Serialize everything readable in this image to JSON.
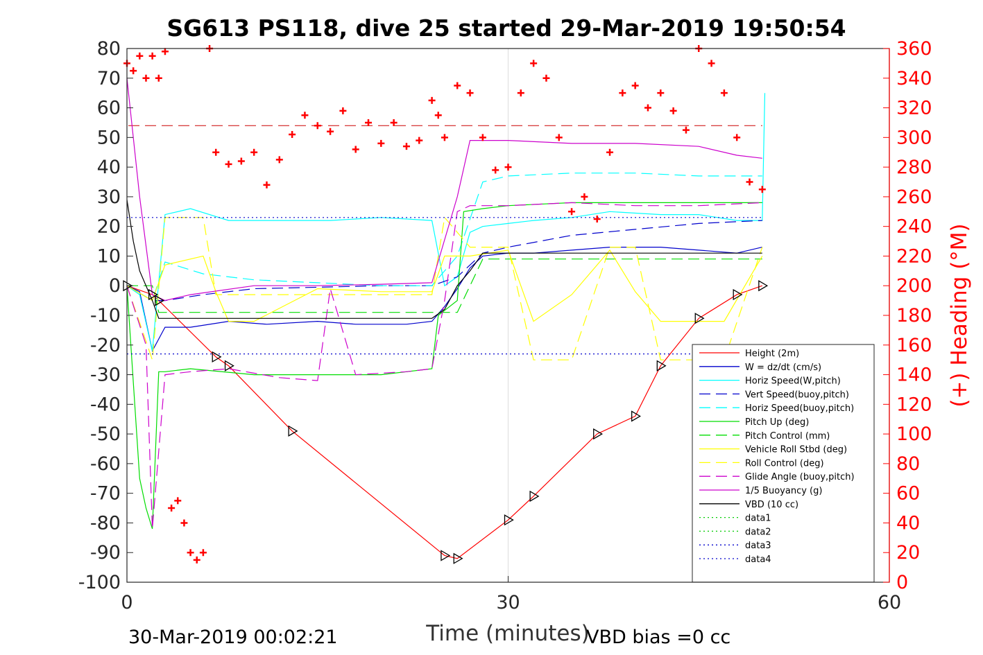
{
  "chart_data": {
    "type": "line",
    "title": "SG613 PS118, dive 25 started 29-Mar-2019 19:50:54",
    "xlabel": "Time (minutes)",
    "ylabel": "",
    "ylabel_right": "(+) Heading (°M)",
    "xlim": [
      0,
      60
    ],
    "ylim": [
      -100,
      80
    ],
    "ylim_right": [
      0,
      360
    ],
    "x_ticks": [
      "0",
      "30",
      "60"
    ],
    "y_ticks": [
      "80",
      "70",
      "60",
      "50",
      "40",
      "30",
      "20",
      "10",
      "0",
      "-10",
      "-20",
      "-30",
      "-40",
      "-50",
      "-60",
      "-70",
      "-80",
      "-90",
      "-100"
    ],
    "y_ticks_right": [
      "360",
      "340",
      "320",
      "300",
      "280",
      "260",
      "240",
      "220",
      "200",
      "180",
      "160",
      "140",
      "120",
      "100",
      "80",
      "60",
      "40",
      "20",
      "0"
    ],
    "grid": "x-only",
    "legend_position": "lower-right",
    "footer_left": "30-Mar-2019 00:02:21",
    "footer_right": "VBD bias =0 cc",
    "colors": {
      "red": "#ff0000",
      "blue": "#0000cc",
      "cyan": "#00ffff",
      "green": "#00dd00",
      "yellow": "#ffff00",
      "magenta": "#cc00cc",
      "black": "#000000"
    },
    "series": [
      {
        "name": "Height (2m)",
        "color": "#ff0000",
        "style": "solid",
        "x": [
          0,
          2,
          2.5,
          7,
          8,
          13,
          25,
          26,
          30,
          32,
          37,
          40,
          42,
          45,
          48,
          50
        ],
        "y": [
          0,
          -3,
          -5,
          -24,
          -27,
          -49,
          -91,
          -92,
          -79,
          -71,
          -50,
          -44,
          -27,
          -11,
          -3,
          0
        ]
      },
      {
        "name": "W = dz/dt (cm/s)",
        "color": "#0000cc",
        "style": "solid",
        "x": [
          0,
          1,
          2,
          3,
          5,
          8,
          11,
          15,
          18,
          22,
          24,
          25,
          26,
          27,
          28,
          30,
          32,
          35,
          38,
          42,
          45,
          48,
          50
        ],
        "y": [
          0,
          -2,
          -22,
          -14,
          -14,
          -12,
          -13,
          -12,
          -13,
          -13,
          -12,
          -7,
          -1,
          6,
          10,
          11,
          11,
          12,
          13,
          13,
          12,
          11,
          13
        ]
      },
      {
        "name": "Horiz Speed(W,pitch)",
        "color": "#00ffff",
        "style": "solid",
        "x": [
          0,
          1,
          2,
          3,
          5,
          8,
          12,
          16,
          20,
          24,
          25,
          26,
          27,
          28,
          30,
          32,
          35,
          38,
          42,
          45,
          48,
          50,
          50.2
        ],
        "y": [
          0,
          -3,
          -22,
          24,
          26,
          22,
          22,
          22,
          23,
          22,
          0,
          3,
          18,
          20,
          21,
          22,
          23,
          25,
          24,
          24,
          22,
          22,
          65
        ]
      },
      {
        "name": "Vert Speed(buoy,pitch)",
        "color": "#0000cc",
        "style": "dashed",
        "x": [
          0,
          2,
          3,
          6,
          10,
          15,
          20,
          24,
          26,
          28,
          30,
          35,
          40,
          45,
          50
        ],
        "y": [
          0,
          -5,
          -5,
          -3,
          -1,
          -0.5,
          0,
          0,
          3,
          11,
          13,
          17,
          19,
          21,
          22
        ]
      },
      {
        "name": "Horiz Speed(buoy,pitch)",
        "color": "#00ffff",
        "style": "dashed",
        "x": [
          0,
          2,
          3,
          6,
          10,
          15,
          20,
          24,
          26,
          28,
          30,
          35,
          40,
          45,
          50
        ],
        "y": [
          0,
          -5,
          8,
          4,
          2,
          1,
          0,
          0,
          10,
          35,
          37,
          38,
          38,
          37,
          37
        ]
      },
      {
        "name": "Pitch Up (deg)",
        "color": "#00dd00",
        "style": "solid",
        "x": [
          0,
          1,
          1.5,
          2,
          2.5,
          3,
          5,
          10,
          15,
          20,
          24,
          24.5,
          26,
          26.5,
          28,
          30,
          35,
          40,
          45,
          50
        ],
        "y": [
          0,
          -65,
          -75,
          -82,
          -29,
          -29,
          -28,
          -30,
          -30,
          -30,
          -28,
          -10,
          -5,
          25,
          26,
          27,
          28,
          28,
          28,
          28
        ]
      },
      {
        "name": "Pitch Control (mm)",
        "color": "#00dd00",
        "style": "dashed",
        "x": [
          0,
          2,
          2.5,
          24,
          26,
          28,
          50
        ],
        "y": [
          0,
          0,
          -9,
          -9,
          -9,
          9,
          9
        ]
      },
      {
        "name": "Vehicle Roll Stbd (deg)",
        "color": "#ffff00",
        "style": "solid",
        "x": [
          0,
          2,
          3,
          6,
          7,
          8,
          10,
          15,
          20,
          24,
          25,
          27,
          30,
          32,
          35,
          38,
          40,
          42,
          45,
          47,
          50
        ],
        "y": [
          0,
          -5,
          7,
          10,
          -2,
          -12,
          -12,
          -1,
          -2,
          -2,
          10,
          10,
          12,
          -12,
          -3,
          12,
          -2,
          -12,
          -12,
          -12,
          10
        ]
      },
      {
        "name": "Roll Control (deg)",
        "color": "#ffff00",
        "style": "dashed",
        "x": [
          0,
          2,
          3,
          6,
          7,
          8,
          10,
          15,
          20,
          24,
          25,
          27,
          30,
          32,
          35,
          38,
          40,
          42,
          45,
          47,
          50
        ],
        "y": [
          0,
          -25,
          23,
          23,
          -3,
          -3,
          -3,
          -3,
          -3,
          -3,
          23,
          13,
          13,
          -25,
          -25,
          13,
          13,
          -25,
          -25,
          -25,
          13
        ]
      },
      {
        "name": "Glide Angle (buoy,pitch)",
        "color": "#cc00cc",
        "style": "dashed",
        "x": [
          0,
          1.5,
          2,
          3,
          5,
          8,
          12,
          15,
          16,
          18,
          22,
          24,
          25,
          26,
          27,
          30,
          35,
          40,
          45,
          50
        ],
        "y": [
          0,
          -20,
          -82,
          -30,
          -29,
          -28,
          -31,
          -32,
          -1,
          -30,
          -29,
          -28,
          -5,
          25,
          27,
          27,
          28,
          27,
          27,
          28
        ]
      },
      {
        "name": "1/5 Buoyancy (g)",
        "color": "#cc00cc",
        "style": "solid",
        "x": [
          0,
          1,
          2,
          3,
          5,
          10,
          15,
          20,
          24,
          26,
          27,
          28,
          30,
          35,
          40,
          45,
          48,
          50
        ],
        "y": [
          70,
          30,
          -3,
          -5,
          -3,
          0,
          0,
          0.5,
          1,
          30,
          49,
          49,
          49,
          48,
          48,
          47,
          44,
          43
        ]
      },
      {
        "name": "VBD (10 cc)",
        "color": "#000000",
        "style": "solid",
        "x": [
          0,
          0.5,
          1,
          2,
          2.5,
          5,
          10,
          15,
          20,
          24,
          25,
          26,
          27,
          28,
          30,
          35,
          40,
          45,
          50
        ],
        "y": [
          29,
          15,
          5,
          -5,
          -11,
          -11,
          -11,
          -11,
          -11,
          -11,
          -8,
          0,
          5,
          11,
          11,
          11,
          11,
          11,
          11
        ]
      },
      {
        "name": "data1",
        "color": "#00cc00",
        "style": "dotted",
        "x": [],
        "y": []
      },
      {
        "name": "data2",
        "color": "#00cc00",
        "style": "dotted",
        "x": [],
        "y": []
      },
      {
        "name": "data3",
        "color": "#0000cc",
        "style": "dotted",
        "x": [
          0,
          50
        ],
        "y": [
          23,
          23
        ]
      },
      {
        "name": "data4",
        "color": "#0000cc",
        "style": "dotted",
        "x": [
          0,
          50
        ],
        "y": [
          -23,
          -23
        ]
      }
    ],
    "reference_lines": [
      {
        "axis": "right",
        "color": "#cc0000",
        "style": "dashed",
        "value": 308
      }
    ],
    "heading_series": {
      "color": "#ff0000",
      "marker": "+",
      "axis": "right",
      "x": [
        0,
        0.5,
        1,
        1.5,
        2,
        2.5,
        3,
        3.5,
        4,
        4.5,
        5,
        5.5,
        6,
        6.5,
        7,
        8,
        9,
        10,
        11,
        12,
        13,
        14,
        15,
        16,
        17,
        18,
        19,
        20,
        21,
        22,
        23,
        24,
        24.5,
        25,
        26,
        27,
        28,
        29,
        30,
        31,
        32,
        33,
        34,
        35,
        36,
        37,
        38,
        39,
        40,
        41,
        42,
        43,
        44,
        45,
        46,
        47,
        48,
        49,
        50
      ],
      "y": [
        350,
        345,
        355,
        340,
        355,
        340,
        358,
        50,
        55,
        40,
        20,
        15,
        20,
        360,
        290,
        282,
        284,
        290,
        268,
        285,
        302,
        315,
        308,
        304,
        318,
        292,
        310,
        296,
        310,
        294,
        298,
        325,
        315,
        300,
        335,
        330,
        300,
        278,
        280,
        330,
        350,
        340,
        300,
        250,
        260,
        245,
        290,
        330,
        335,
        320,
        330,
        318,
        305,
        360,
        350,
        330,
        300,
        270,
        265
      ]
    }
  }
}
